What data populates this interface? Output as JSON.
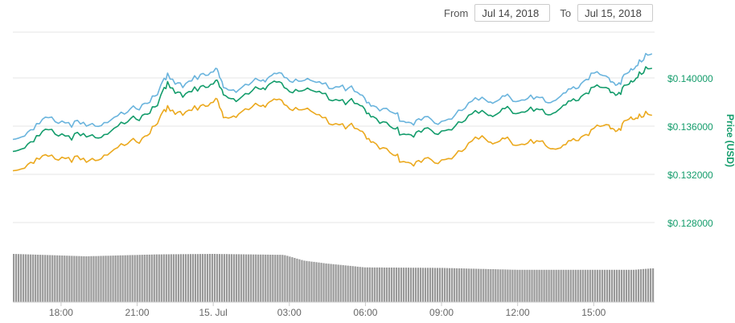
{
  "range": {
    "from_label": "From",
    "from_value": "Jul 14, 2018",
    "to_label": "To",
    "to_value": "Jul 15, 2018"
  },
  "colors": {
    "line_top": "#6ab4dd",
    "line_mid": "#139c6b",
    "line_low": "#eba91e",
    "volume": "#999999",
    "axis_text": "#139c6b"
  },
  "chart_data": {
    "type": "line",
    "title": "",
    "xlabel": "",
    "ylabel": "Price (USD)",
    "y_ticks": [
      "$0.128000",
      "$0.132000",
      "$0.136000",
      "$0.140000"
    ],
    "y_tick_values": [
      0.128,
      0.132,
      0.136,
      0.14
    ],
    "ylim": [
      0.1258,
      0.1438
    ],
    "x_ticks": [
      "18:00",
      "21:00",
      "15. Jul",
      "03:00",
      "06:00",
      "09:00",
      "12:00",
      "15:00"
    ],
    "x_tick_hours": [
      18,
      21,
      24,
      27,
      30,
      33,
      36,
      39
    ],
    "xlim_hours": [
      16.1,
      41.4
    ],
    "grid": true,
    "legend": "none",
    "series": [
      {
        "color": "#6ab4dd",
        "x_hours": [
          16.1,
          16.8,
          17.5,
          18.3,
          19.0,
          19.7,
          20.5,
          21.2,
          21.8,
          22.2,
          22.8,
          23.5,
          24.1,
          24.4,
          25.0,
          25.8,
          26.3,
          26.9,
          27.6,
          28.3,
          29.1,
          29.8,
          30.3,
          31.1,
          31.6,
          32.2,
          33.0,
          33.8,
          34.6,
          35.1,
          35.7,
          36.4,
          37.1,
          37.7,
          38.3,
          38.9,
          39.6,
          40.0,
          40.4,
          40.8,
          41.3
        ],
        "values": [
          0.1349,
          0.1357,
          0.1367,
          0.1363,
          0.136,
          0.1363,
          0.137,
          0.1378,
          0.1386,
          0.1404,
          0.1392,
          0.1403,
          0.1408,
          0.1392,
          0.139,
          0.1398,
          0.1402,
          0.14,
          0.1398,
          0.1395,
          0.1394,
          0.1386,
          0.1377,
          0.1371,
          0.1363,
          0.1365,
          0.1364,
          0.1373,
          0.1384,
          0.138,
          0.1384,
          0.1383,
          0.138,
          0.1385,
          0.1391,
          0.1404,
          0.14,
          0.1396,
          0.1405,
          0.1415,
          0.142
        ]
      },
      {
        "color": "#139c6b",
        "x_hours": [
          16.1,
          16.8,
          17.5,
          18.3,
          19.0,
          19.7,
          20.5,
          21.2,
          21.8,
          22.2,
          22.8,
          23.5,
          24.1,
          24.4,
          25.0,
          25.8,
          26.3,
          26.9,
          27.6,
          28.3,
          29.1,
          29.8,
          30.3,
          31.1,
          31.6,
          32.2,
          33.0,
          33.8,
          34.6,
          35.1,
          35.7,
          36.4,
          37.1,
          37.7,
          38.3,
          38.9,
          39.6,
          40.0,
          40.4,
          40.8,
          41.3
        ],
        "values": [
          0.1339,
          0.1347,
          0.1357,
          0.1352,
          0.1351,
          0.1353,
          0.1362,
          0.1369,
          0.1377,
          0.1397,
          0.1384,
          0.1393,
          0.1398,
          0.1386,
          0.1382,
          0.1391,
          0.1396,
          0.1391,
          0.139,
          0.1387,
          0.1382,
          0.1377,
          0.1368,
          0.1358,
          0.1353,
          0.1355,
          0.1356,
          0.1363,
          0.1373,
          0.1369,
          0.1374,
          0.1373,
          0.137,
          0.1375,
          0.1381,
          0.1392,
          0.1391,
          0.1388,
          0.1395,
          0.1405,
          0.1408
        ]
      },
      {
        "color": "#eba91e",
        "x_hours": [
          16.1,
          16.8,
          17.5,
          18.3,
          19.0,
          19.7,
          20.5,
          21.2,
          21.8,
          22.2,
          22.8,
          23.5,
          24.1,
          24.4,
          25.0,
          25.8,
          26.3,
          26.9,
          27.6,
          28.3,
          29.1,
          29.8,
          30.3,
          31.1,
          31.6,
          32.2,
          33.0,
          33.8,
          34.6,
          35.1,
          35.7,
          36.4,
          37.1,
          37.7,
          38.3,
          38.9,
          39.6,
          40.0,
          40.4,
          40.8,
          41.3
        ],
        "values": [
          0.1323,
          0.133,
          0.1335,
          0.1334,
          0.133,
          0.1336,
          0.1344,
          0.135,
          0.1362,
          0.1377,
          0.1369,
          0.1377,
          0.1383,
          0.1367,
          0.137,
          0.1377,
          0.1381,
          0.1377,
          0.1374,
          0.1367,
          0.1362,
          0.1356,
          0.1347,
          0.1336,
          0.133,
          0.133,
          0.1332,
          0.1339,
          0.1352,
          0.1346,
          0.1348,
          0.1346,
          0.1344,
          0.1342,
          0.1348,
          0.1357,
          0.1361,
          0.1358,
          0.1366,
          0.137,
          0.1369
        ]
      }
    ],
    "volume": {
      "color": "#999999",
      "x_hours": [
        16.1,
        19.0,
        21.8,
        24.0,
        26.8,
        27.6,
        28.5,
        30.0,
        33.0,
        36.0,
        39.0,
        40.6,
        41.3
      ],
      "relative_values": [
        1.0,
        0.95,
        0.99,
        1.0,
        0.98,
        0.86,
        0.8,
        0.72,
        0.71,
        0.67,
        0.67,
        0.67,
        0.7
      ]
    }
  }
}
